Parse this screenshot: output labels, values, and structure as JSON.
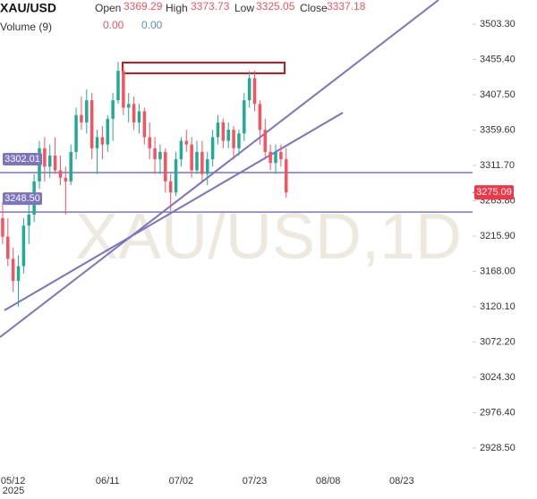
{
  "chart_data": {
    "type": "candlestick",
    "title": "XAU/USD",
    "watermark": "XAU/USD,1D",
    "header": {
      "labels": [
        "Open",
        "High",
        "Low",
        "Close"
      ],
      "values": [
        "3369.29",
        "3373.73",
        "3325.05",
        "3337.18"
      ],
      "volume_label": "Volume (9)",
      "volume_values": [
        "0.00",
        "0.00"
      ]
    },
    "up_color": "#22ab94",
    "down_color": "#f7525f",
    "open": [
      3240,
      3215,
      3185,
      3155,
      3175,
      3230,
      3245,
      3290,
      3335,
      3310,
      3325,
      3305,
      3295,
      3290,
      3330,
      3380,
      3370,
      3400,
      3335,
      3350,
      3340,
      3375,
      3400,
      3440,
      3390,
      3395,
      3370,
      3385,
      3350,
      3335,
      3320,
      3330,
      3290,
      3275,
      3320,
      3345,
      3340,
      3305,
      3330,
      3300,
      3320,
      3350,
      3370,
      3345,
      3360,
      3335,
      3355,
      3400,
      3430,
      3395,
      3360,
      3330,
      3315,
      3330,
      3320
    ],
    "high": [
      3262,
      3240,
      3200,
      3190,
      3240,
      3260,
      3300,
      3345,
      3350,
      3340,
      3350,
      3325,
      3310,
      3340,
      3390,
      3405,
      3415,
      3410,
      3360,
      3365,
      3380,
      3410,
      3452,
      3445,
      3410,
      3405,
      3395,
      3390,
      3370,
      3350,
      3340,
      3335,
      3300,
      3330,
      3350,
      3360,
      3350,
      3345,
      3345,
      3330,
      3360,
      3380,
      3375,
      3370,
      3365,
      3360,
      3410,
      3440,
      3440,
      3400,
      3375,
      3340,
      3340,
      3340,
      3335
    ],
    "low": [
      3205,
      3175,
      3140,
      3120,
      3165,
      3205,
      3235,
      3280,
      3290,
      3295,
      3300,
      3285,
      3245,
      3285,
      3320,
      3360,
      3355,
      3320,
      3300,
      3320,
      3330,
      3345,
      3395,
      3380,
      3370,
      3360,
      3355,
      3340,
      3320,
      3300,
      3300,
      3275,
      3250,
      3270,
      3310,
      3330,
      3295,
      3300,
      3290,
      3285,
      3310,
      3340,
      3335,
      3335,
      3320,
      3325,
      3345,
      3390,
      3385,
      3340,
      3320,
      3305,
      3300,
      3310,
      3268
    ],
    "close": [
      3215,
      3185,
      3155,
      3175,
      3230,
      3245,
      3290,
      3335,
      3310,
      3325,
      3305,
      3295,
      3290,
      3330,
      3380,
      3370,
      3400,
      3335,
      3350,
      3340,
      3375,
      3400,
      3440,
      3390,
      3395,
      3370,
      3385,
      3350,
      3335,
      3320,
      3330,
      3290,
      3275,
      3320,
      3345,
      3340,
      3305,
      3330,
      3300,
      3320,
      3350,
      3370,
      3345,
      3360,
      3335,
      3355,
      3400,
      3430,
      3395,
      3360,
      3330,
      3315,
      3330,
      3320,
      3275.09
    ],
    "last_price": 3275.09,
    "levels": [
      {
        "value": 3302.01,
        "label": "3302.01"
      },
      {
        "value": 3248.5,
        "label": "3248.50"
      }
    ],
    "level_color": "#7b74c1",
    "ylim": [
      2893.2,
      3536.05
    ],
    "yticks": [
      {
        "value": 3503.3,
        "label": "3503.30"
      },
      {
        "value": 3455.4,
        "label": "3455.40"
      },
      {
        "value": 3407.5,
        "label": "3407.50"
      },
      {
        "value": 3359.6,
        "label": "3359.60"
      },
      {
        "value": 3311.7,
        "label": "3311.70"
      },
      {
        "value": 3263.8,
        "label": "3263.80"
      },
      {
        "value": 3215.9,
        "label": "3215.90"
      },
      {
        "value": 3168,
        "label": "3168.00"
      },
      {
        "value": 3120.1,
        "label": "3120.10"
      },
      {
        "value": 3072.2,
        "label": "3072.20"
      },
      {
        "value": 3024.3,
        "label": "3024.30"
      },
      {
        "value": 2976.4,
        "label": "2976.40"
      },
      {
        "value": 2928.5,
        "label": "2928.50"
      }
    ],
    "xlim": [
      -0.5,
      89.5
    ],
    "xticks": [
      {
        "value": 2,
        "label": "05/12"
      },
      {
        "value": 20,
        "label": "06/11"
      },
      {
        "value": 34,
        "label": "07/02"
      },
      {
        "value": 48,
        "label": "07/23"
      },
      {
        "value": 62,
        "label": "08/08"
      },
      {
        "value": 76,
        "label": "08/23"
      }
    ],
    "year_label": "2025"
  }
}
